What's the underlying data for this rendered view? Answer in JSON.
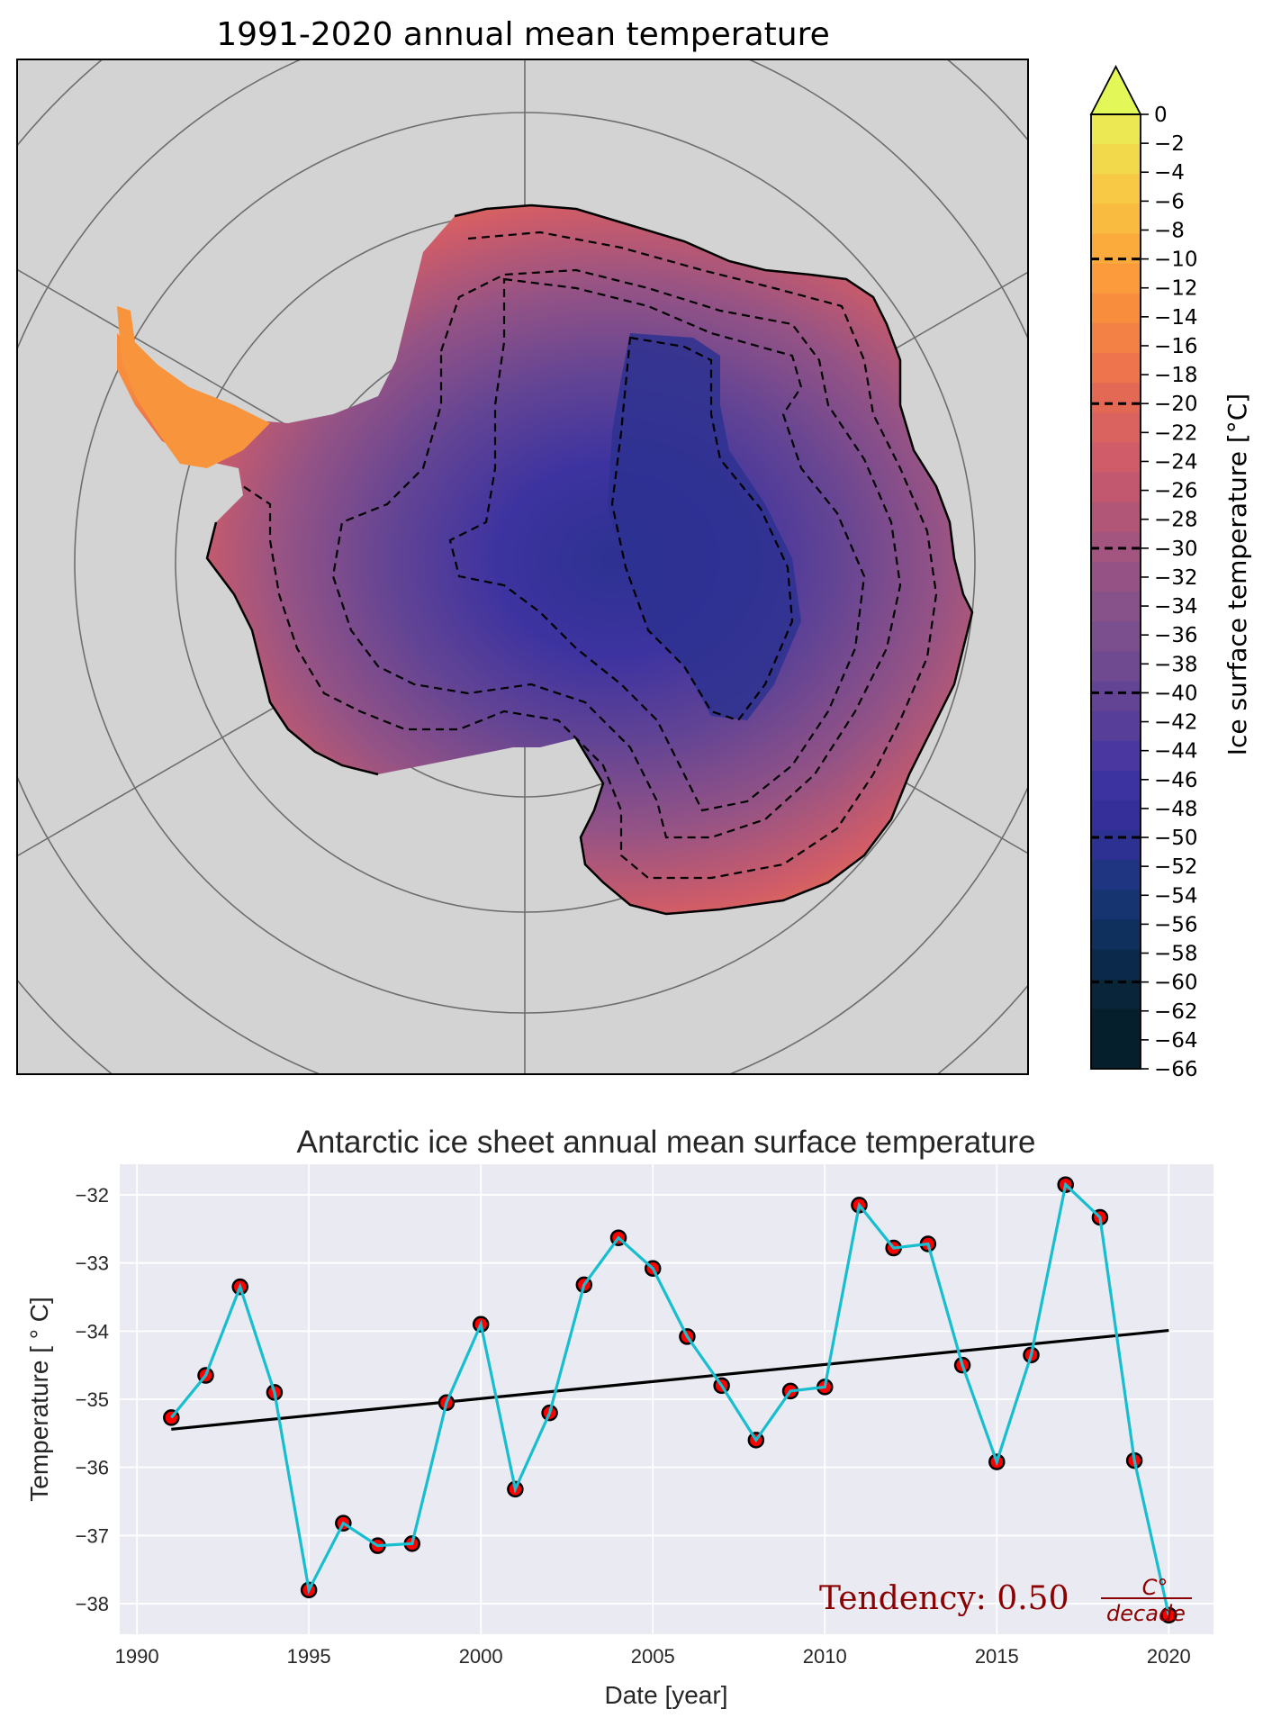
{
  "chart_data": [
    {
      "type": "heatmap",
      "title": "1991-2020 annual mean temperature",
      "projection": "south-polar-stereographic",
      "background_color": "#d3d3d3",
      "colorbar": {
        "label": "Ice surface temperature [°C]",
        "range": [
          -66,
          0
        ],
        "extend": "max",
        "ticks": [
          0,
          -2,
          -4,
          -6,
          -8,
          -10,
          -12,
          -14,
          -16,
          -18,
          -20,
          -22,
          -24,
          -26,
          -28,
          -30,
          -32,
          -34,
          -36,
          -38,
          -40,
          -42,
          -44,
          -46,
          -48,
          -50,
          -52,
          -54,
          -56,
          -58,
          -60,
          -62,
          -64,
          -66
        ],
        "tick_labels": [
          "0",
          "−2",
          "−4",
          "−6",
          "−8",
          "−10",
          "−12",
          "−14",
          "−16",
          "−18",
          "−20",
          "−22",
          "−24",
          "−26",
          "−28",
          "−30",
          "−32",
          "−34",
          "−36",
          "−38",
          "−40",
          "−42",
          "−44",
          "−46",
          "−48",
          "−50",
          "−52",
          "−54",
          "−56",
          "−58",
          "−60",
          "−62",
          "−64",
          "−66"
        ],
        "contour_levels": [
          -10,
          -20,
          -30,
          -40,
          -50,
          -60
        ],
        "colors": [
          "#e4f758",
          "#ebe853",
          "#f2d94c",
          "#f7c945",
          "#f9bb40",
          "#fbab3c",
          "#fb9b3b",
          "#f88d3e",
          "#f38045",
          "#ed744c",
          "#e46955",
          "#da625f",
          "#cf5c68",
          "#c15870",
          "#b25677",
          "#a3547f",
          "#955385",
          "#875189",
          "#7b4f8d",
          "#6f4a91",
          "#634494",
          "#573e99",
          "#4a38a0",
          "#3d33a0",
          "#342f99",
          "#2d3191",
          "#1f3582",
          "#153470",
          "#0f2f5d",
          "#0b2a4b",
          "#082539",
          "#061f2c",
          "#061f2c"
        ]
      },
      "annotations": [
        "dashed contours every 10 °C",
        "solid coastline"
      ]
    },
    {
      "type": "line",
      "title": "Antarctic ice sheet annual mean surface temperature",
      "xlabel": "Date [year]",
      "ylabel": "Temperature [$^\\circ$C]",
      "ylabel_display": "Temperature [ ° C]",
      "xlim": [
        1989.5,
        2021.3
      ],
      "ylim": [
        -38.45,
        -31.55
      ],
      "xticks": [
        1990,
        1995,
        2000,
        2005,
        2010,
        2015,
        2020
      ],
      "yticks": [
        -32,
        -33,
        -34,
        -35,
        -36,
        -37,
        -38
      ],
      "ytick_labels": [
        "−32",
        "−33",
        "−34",
        "−35",
        "−36",
        "−37",
        "−38"
      ],
      "grid": true,
      "x": [
        1991,
        1992,
        1993,
        1994,
        1995,
        1996,
        1997,
        1998,
        1999,
        2000,
        2001,
        2002,
        2003,
        2004,
        2005,
        2006,
        2007,
        2008,
        2009,
        2010,
        2011,
        2012,
        2013,
        2014,
        2015,
        2016,
        2017,
        2018,
        2019,
        2020
      ],
      "series": [
        {
          "name": "annual mean",
          "style": "line+markers",
          "line_color": "#17becf",
          "marker_face": "#ff0000",
          "marker_edge": "#000000",
          "values": [
            -35.27,
            -34.65,
            -33.35,
            -34.9,
            -37.8,
            -36.82,
            -37.15,
            -37.12,
            -35.05,
            -33.9,
            -36.32,
            -35.2,
            -33.32,
            -32.63,
            -33.08,
            -34.08,
            -34.8,
            -35.6,
            -34.88,
            -34.82,
            -32.15,
            -32.78,
            -32.72,
            -34.5,
            -35.92,
            -34.35,
            -31.85,
            -32.33,
            -35.9,
            -38.17
          ]
        },
        {
          "name": "linear trend",
          "style": "line",
          "line_color": "#000000",
          "x": [
            1991,
            2020
          ],
          "values": [
            -35.44,
            -33.99
          ]
        }
      ],
      "annotation": {
        "prefix": "Tendency: 0.50",
        "value": 0.5,
        "numerator": "C°",
        "denominator": "decade",
        "color": "#8b0000",
        "placement": "bottom-right"
      }
    }
  ]
}
